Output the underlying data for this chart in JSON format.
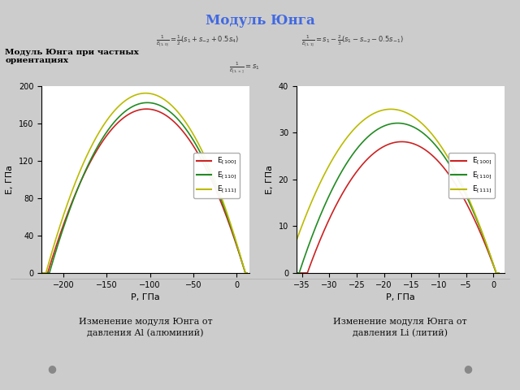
{
  "title": "Модуль Юнга",
  "title_color": "#4169E1",
  "left_label": "Модуль Юнга при частных\nориентациях",
  "bg_color": "#CCCCCC",
  "plot_bg": "#FFFFFF",
  "al_subtitle": "Изменение модуля Юнга от\nдавления Al (алюминий)",
  "li_subtitle": "Изменение модуля Юнга от\nдавления Li (литий)",
  "ylabel": "Е, ГПа",
  "xlabel": "Р, ГПа",
  "colors": {
    "100": "#CC2222",
    "110": "#228B22",
    "111": "#BBBB00"
  },
  "al_xlim": [
    -225,
    15
  ],
  "al_ylim": [
    0,
    200
  ],
  "al_xticks": [
    -200,
    -150,
    -100,
    -50,
    0
  ],
  "al_yticks": [
    0,
    40,
    80,
    120,
    160,
    200
  ],
  "li_xlim": [
    -36,
    2
  ],
  "li_ylim": [
    0,
    40
  ],
  "li_xticks": [
    -35,
    -30,
    -25,
    -20,
    -15,
    -10,
    -5,
    0
  ],
  "li_yticks": [
    0,
    10,
    20,
    30,
    40
  ],
  "al_parabolas": [
    {
      "p0": 10,
      "p1": -218,
      "peak_p": -100,
      "peak_E": 175
    },
    {
      "p0": 10,
      "p1": -216,
      "peak_p": -103,
      "peak_E": 182
    },
    {
      "p0": 10,
      "p1": -220,
      "peak_p": -108,
      "peak_E": 192
    }
  ],
  "li_parabolas": [
    {
      "p0": 0.5,
      "p1": -34,
      "peak_p": -16,
      "peak_E": 28
    },
    {
      "p0": 0.5,
      "p1": -35.5,
      "peak_p": -17,
      "peak_E": 32
    },
    {
      "p0": 0.5,
      "p1": -38,
      "peak_p": -19,
      "peak_E": 35
    }
  ]
}
